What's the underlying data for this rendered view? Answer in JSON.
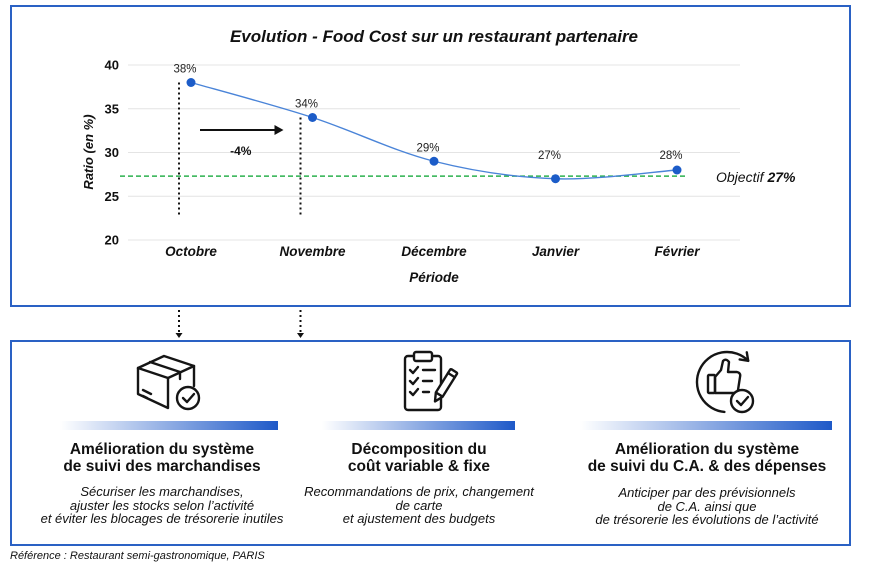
{
  "chart_data": {
    "type": "line",
    "title": "Evolution - Food Cost sur un restaurant partenaire",
    "categories": [
      "Octobre",
      "Novembre",
      "Décembre",
      "Janvier",
      "Février"
    ],
    "values": [
      38,
      34,
      29,
      27,
      28
    ],
    "value_labels": [
      "38%",
      "34%",
      "29%",
      "27%",
      "28%"
    ],
    "xlabel": "Période",
    "ylabel": "Ratio (en %)",
    "ylim": [
      20,
      40
    ],
    "yticks": [
      40,
      35,
      30,
      25,
      20
    ],
    "grid": true,
    "target": {
      "value": 27.3,
      "label": "Objectif",
      "value_label": "27%"
    },
    "annotation": {
      "text": "-4%",
      "from_index": 0,
      "to_index": 1
    }
  },
  "actions": [
    {
      "icon": "box-check-icon",
      "title_lines": [
        "Amélioration du système",
        "de suivi des marchandises"
      ],
      "description_lines": [
        "Sécuriser les marchandises,",
        "ajuster les stocks selon l’activité",
        "et éviter les blocages de trésorerie inutiles"
      ]
    },
    {
      "icon": "clipboard-checklist-icon",
      "title_lines": [
        "Décomposition du",
        "coût variable & fixe"
      ],
      "description_lines": [
        "Recommandations de prix, changement",
        "de carte",
        "et ajustement des budgets"
      ]
    },
    {
      "icon": "thumbs-up-cycle-icon",
      "title_lines": [
        "Amélioration du système",
        "de suivi du C.A. & des dépenses"
      ],
      "description_lines": [
        "Anticiper par des prévisionnels",
        "de C.A. ainsi que",
        "de trésorerie les évolutions de l’activité"
      ]
    }
  ],
  "footer": {
    "reference": "Référence : Restaurant semi-gastronomique, PARIS"
  },
  "colors": {
    "border": "#2a61c4",
    "line": "#4a84d8",
    "point": "#1c5cc8",
    "target": "#2bb04d",
    "grid": "#e4e4e4",
    "text": "#111111"
  }
}
